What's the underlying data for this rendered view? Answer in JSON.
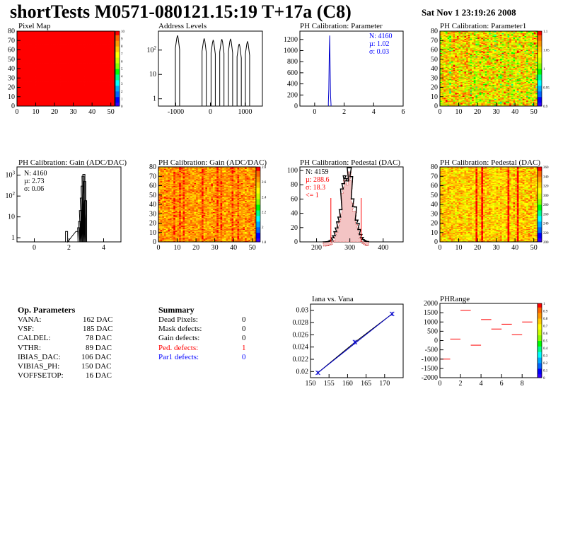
{
  "header": {
    "title": "shortTests M0571-080121.15:19 T+17a (C8)",
    "date": "Sat Nov  1 23:19:26 2008"
  },
  "chart_data": [
    {
      "id": "pixel-map",
      "type": "heatmap",
      "title": "Pixel Map",
      "xlim": [
        0,
        52
      ],
      "ylim": [
        0,
        80
      ],
      "xticks": [
        "0",
        "10",
        "20",
        "30",
        "40",
        "50"
      ],
      "yticks": [
        "0",
        "10",
        "20",
        "30",
        "40",
        "50",
        "60",
        "70",
        "80"
      ],
      "zticks": [
        "0",
        "1",
        "2",
        "3",
        "4",
        "5",
        "6",
        "7",
        "8",
        "9",
        "10"
      ],
      "uniform_value": 10
    },
    {
      "id": "address-levels",
      "type": "bar",
      "title": "Address Levels",
      "xlim": [
        -1500,
        1500
      ],
      "ylog": true,
      "xticks": [
        "-1000",
        "0",
        "1000"
      ],
      "yticks": [
        "1",
        "10",
        "10^2"
      ],
      "peaks": [
        {
          "x": -950,
          "height": 400
        },
        {
          "x": -180,
          "height": 300
        },
        {
          "x": 80,
          "height": 260
        },
        {
          "x": 330,
          "height": 280
        },
        {
          "x": 580,
          "height": 290
        },
        {
          "x": 830,
          "height": 180
        },
        {
          "x": 1070,
          "height": 230
        }
      ]
    },
    {
      "id": "ph-cal-parameter",
      "type": "bar",
      "title": "PH Calibration: Parameter",
      "xlim": [
        -1,
        6
      ],
      "ylim": [
        0,
        1350
      ],
      "xticks": [
        "0",
        "2",
        "4",
        "6"
      ],
      "yticks": [
        "0",
        "200",
        "400",
        "600",
        "800",
        "1000",
        "1200"
      ],
      "stats": {
        "n": "N: 4160",
        "mu": "µ: 1.02",
        "sigma": "σ: 0.03"
      },
      "peak": {
        "x": [
          0.93,
          0.96,
          0.99,
          1.02,
          1.05,
          1.08,
          1.11
        ],
        "y": [
          60,
          300,
          900,
          1270,
          700,
          180,
          30
        ]
      }
    },
    {
      "id": "ph-cal-parameter1",
      "type": "heatmap",
      "title": "PH Calibration: Parameter1",
      "xlim": [
        0,
        52
      ],
      "ylim": [
        0,
        80
      ],
      "xticks": [
        "0",
        "10",
        "20",
        "30",
        "40",
        "50"
      ],
      "yticks": [
        "0",
        "10",
        "20",
        "30",
        "40",
        "50",
        "60",
        "70",
        "80"
      ],
      "zticks": [
        "0.9",
        "0.95",
        "1",
        "1.05",
        "1.1"
      ]
    },
    {
      "id": "ph-cal-gain-hist",
      "type": "bar",
      "title": "PH Calibration: Gain (ADC/DAC)",
      "xlim": [
        -1,
        5
      ],
      "ylog": true,
      "xticks": [
        "0",
        "2",
        "4"
      ],
      "yticks": [
        "1",
        "10",
        "10^2",
        "10^3"
      ],
      "stats": {
        "n": "N: 4160",
        "mu": "µ: 2.73",
        "sigma": "σ: 0.06"
      },
      "peak": {
        "x": [
          1.8,
          2.4,
          2.5,
          2.55,
          2.6,
          2.65,
          2.7,
          2.75,
          2.8,
          2.85,
          2.9
        ],
        "y": [
          2,
          2,
          3,
          6,
          20,
          80,
          300,
          900,
          1100,
          500,
          60
        ]
      }
    },
    {
      "id": "ph-cal-gain-map",
      "type": "heatmap",
      "title": "PH Calibration: Gain (ADC/DAC)",
      "xlim": [
        0,
        52
      ],
      "ylim": [
        0,
        80
      ],
      "xticks": [
        "0",
        "10",
        "20",
        "30",
        "40",
        "50"
      ],
      "yticks": [
        "0",
        "10",
        "20",
        "30",
        "40",
        "50",
        "60",
        "70",
        "80"
      ],
      "zticks": [
        "1.8",
        "2",
        "2.2",
        "2.4",
        "2.6",
        "2.8"
      ]
    },
    {
      "id": "ph-cal-pedestal-hist",
      "type": "bar",
      "title": "PH Calibration: Pedestal (DAC)",
      "xlim": [
        150,
        460
      ],
      "ylim": [
        0,
        105
      ],
      "xticks": [
        "200",
        "300",
        "400"
      ],
      "yticks": [
        "0",
        "20",
        "40",
        "60",
        "80",
        "100"
      ],
      "stats": {
        "n": "N: 4159",
        "mu": "µ: 288.6",
        "sigma": "σ: 18.3",
        "cut": "<= 1"
      },
      "mean": 288.6,
      "sigma": 18.3,
      "peak_height": 100,
      "cut_lines": [
        243,
        334
      ]
    },
    {
      "id": "ph-cal-pedestal-map",
      "type": "heatmap",
      "title": "PH Calibration: Pedestal (DAC)",
      "xlim": [
        0,
        52
      ],
      "ylim": [
        0,
        80
      ],
      "xticks": [
        "0",
        "10",
        "20",
        "30",
        "40",
        "50"
      ],
      "yticks": [
        "0",
        "10",
        "20",
        "30",
        "40",
        "50",
        "60",
        "70",
        "80"
      ],
      "zticks": [
        "200",
        "220",
        "240",
        "260",
        "280",
        "300",
        "320",
        "340",
        "360"
      ]
    },
    {
      "id": "iana-vs-vana",
      "type": "line",
      "title": "Iana vs. Vana",
      "xlim": [
        150,
        175
      ],
      "ylim": [
        0.019,
        0.031
      ],
      "xticks": [
        "150",
        "155",
        "160",
        "165",
        "170"
      ],
      "yticks": [
        "0.02",
        "0.022",
        "0.024",
        "0.026",
        "0.028",
        "0.03"
      ],
      "x": [
        152,
        162,
        172
      ],
      "y": [
        0.0198,
        0.0248,
        0.0294
      ]
    },
    {
      "id": "ph-range",
      "type": "scatter",
      "title": "PHRange",
      "xlim": [
        0,
        9.5
      ],
      "ylim": [
        -2000,
        2000
      ],
      "xticks": [
        "0",
        "2",
        "4",
        "6",
        "8"
      ],
      "yticks": [
        "-2000",
        "-1500",
        "-1000",
        "-500",
        "0",
        "500",
        "1000",
        "1500",
        "2000"
      ],
      "zticks": [
        "0",
        "0.1",
        "0.2",
        "0.3",
        "0.4",
        "0.5",
        "0.6",
        "0.7",
        "0.8",
        "0.9",
        "1"
      ],
      "x": [
        0.5,
        1.5,
        2.5,
        3.5,
        4.5,
        5.5,
        6.5,
        7.5,
        8.5
      ],
      "y": [
        -1000,
        80,
        1630,
        -250,
        1130,
        620,
        880,
        320,
        1000
      ]
    }
  ],
  "op_params": {
    "title": "Op. Parameters",
    "rows": [
      {
        "name": "VANA:",
        "value": "162 DAC"
      },
      {
        "name": "VSF:",
        "value": "185 DAC"
      },
      {
        "name": "CALDEL:",
        "value": "78 DAC"
      },
      {
        "name": "VTHR:",
        "value": "89 DAC"
      },
      {
        "name": "IBIAS_DAC:",
        "value": "106 DAC"
      },
      {
        "name": "VIBIAS_PH:",
        "value": "150 DAC"
      },
      {
        "name": "VOFFSETOP:",
        "value": "16 DAC"
      }
    ]
  },
  "summary": {
    "title": "Summary",
    "rows": [
      {
        "name": "Dead Pixels:",
        "value": "0",
        "color": "#000000"
      },
      {
        "name": "Mask defects:",
        "value": "0",
        "color": "#000000"
      },
      {
        "name": "Gain defects:",
        "value": "0",
        "color": "#000000"
      },
      {
        "name": "Ped. defects:",
        "value": "1",
        "color": "#ff0000"
      },
      {
        "name": "Par1 defects:",
        "value": "0",
        "color": "#0000ff"
      }
    ]
  }
}
